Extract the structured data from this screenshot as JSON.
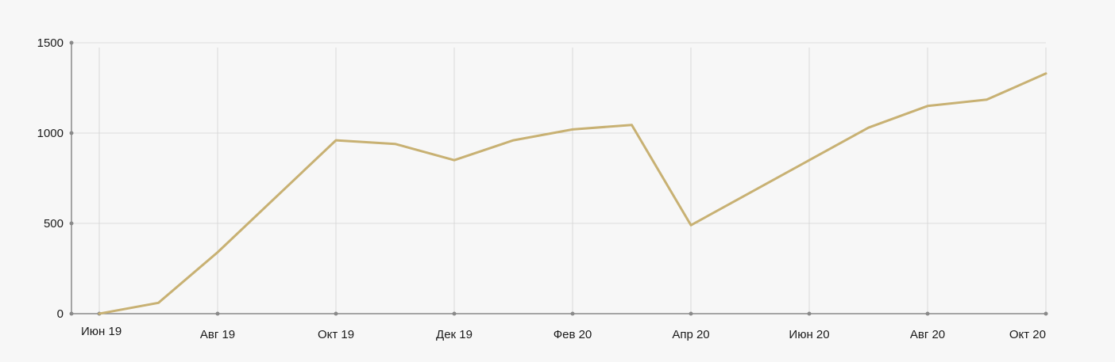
{
  "chart_data": {
    "type": "line",
    "title": "",
    "xlabel": "",
    "ylabel": "",
    "ylim": [
      0,
      1500
    ],
    "yticks": [
      0,
      500,
      1000,
      1500
    ],
    "ytick_labels": [
      "0",
      "500",
      "1000",
      "1500"
    ],
    "xlim": [
      "2019-06",
      "2020-10"
    ],
    "xticks": [
      "2019-06",
      "2019-08",
      "2019-10",
      "2019-12",
      "2020-02",
      "2020-04",
      "2020-06",
      "2020-08",
      "2020-10"
    ],
    "xtick_labels": [
      "Июн 19",
      "Авг 19",
      "Окт 19",
      "Дек 19",
      "Фев 20",
      "Апр 20",
      "Июн 20",
      "Авг 20",
      "Окт 20"
    ],
    "grid": true,
    "series": [
      {
        "color": "#c8b173",
        "x": [
          "2019-06",
          "2019-07",
          "2019-08",
          "2019-10",
          "2019-11",
          "2019-12",
          "2020-01",
          "2020-02",
          "2020-03",
          "2020-04",
          "2020-06",
          "2020-07",
          "2020-08",
          "2020-09",
          "2020-10"
        ],
        "values": [
          0,
          60,
          340,
          960,
          940,
          850,
          960,
          1020,
          1045,
          490,
          850,
          1030,
          1150,
          1185,
          1330
        ]
      }
    ]
  }
}
